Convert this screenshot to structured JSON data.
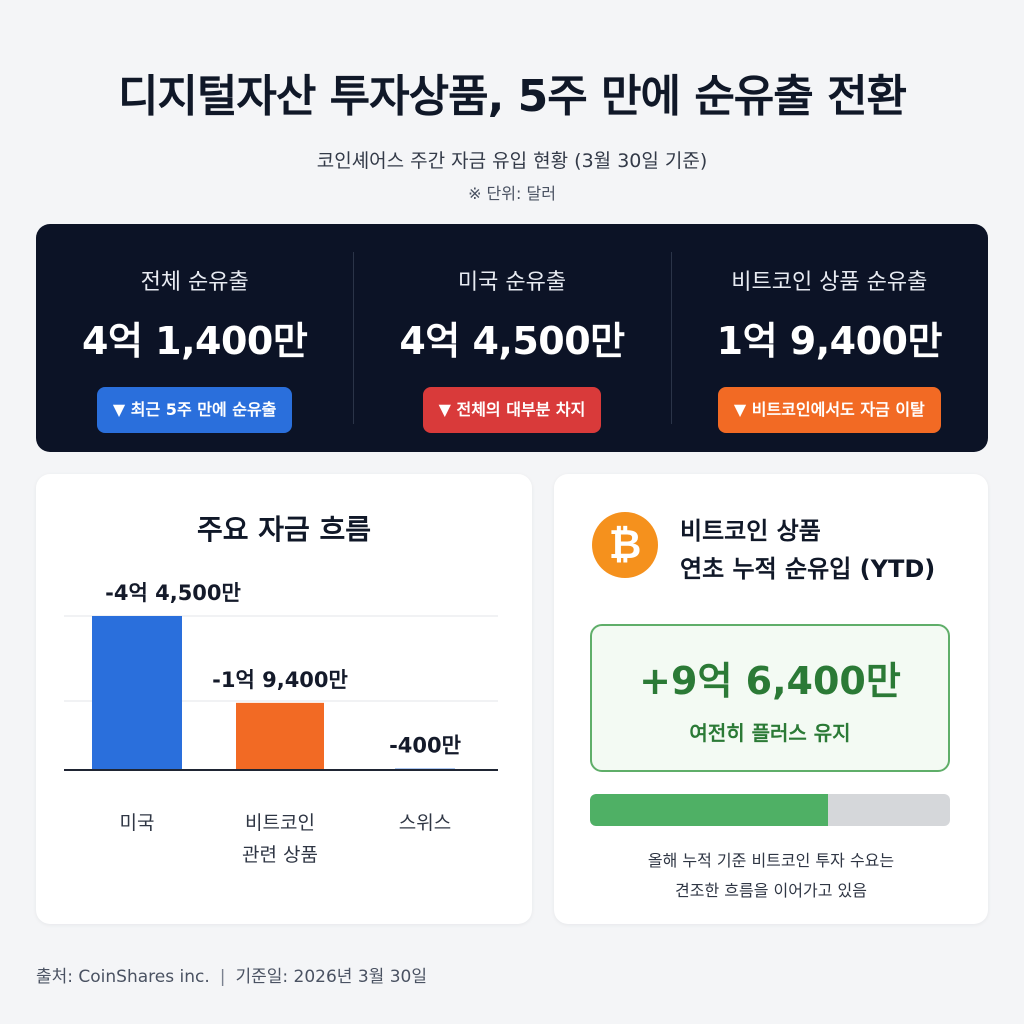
{
  "header": {
    "title": "디지털자산 투자상품, 5주 만에 순유출 전환",
    "subtitle": "코인셰어스 주간 자금 유입 현황 (3월 30일 기준)",
    "unit_note": "※ 단위: 달러"
  },
  "summary": [
    {
      "label": "전체 순유출",
      "value": "4억 1,400만",
      "badge": "▼ 최근 5주 만에 순유출",
      "color": "#2a6fdc"
    },
    {
      "label": "미국 순유출",
      "value": "4억 4,500만",
      "badge": "▼ 전체의 대부분 차지",
      "color": "#d93a3a"
    },
    {
      "label": "비트코인 상품 순유출",
      "value": "1억 9,400만",
      "badge": "▼ 비트코인에서도 자금 이탈",
      "color": "#f26a24"
    }
  ],
  "chart_data": {
    "type": "bar",
    "title": "주요 자금 흐름",
    "categories": [
      "미국",
      "비트코인 관련 상품",
      "스위스"
    ],
    "category_lines": [
      [
        "미국"
      ],
      [
        "비트코인",
        "관련 상품"
      ],
      [
        "스위스"
      ]
    ],
    "values": [
      -44500,
      -19400,
      -400
    ],
    "value_labels": [
      "-4억 4,500만",
      "-1억 9,400만",
      "-400만"
    ],
    "colors": [
      "#2a6fdc",
      "#f26a24",
      "#2a6fdc"
    ],
    "unit": "만 달러",
    "grid": true,
    "legend": "none"
  },
  "ytd": {
    "title_line1": "비트코인 상품",
    "title_line2": "연초 누적 순유입 (YTD)",
    "icon": "bitcoin-icon",
    "icon_glyph": "₿",
    "value": "+9억 6,400만",
    "note": "여전히 플러스 유지",
    "progress_fraction": 0.66,
    "desc_line1": "올해 누적 기준 비트코인 투자 수요는",
    "desc_line2": "견조한 흐름을 이어가고 있음"
  },
  "footer": {
    "source": "출처: CoinShares inc.",
    "separator": "|",
    "date": "기준일: 2026년 3월 30일"
  }
}
